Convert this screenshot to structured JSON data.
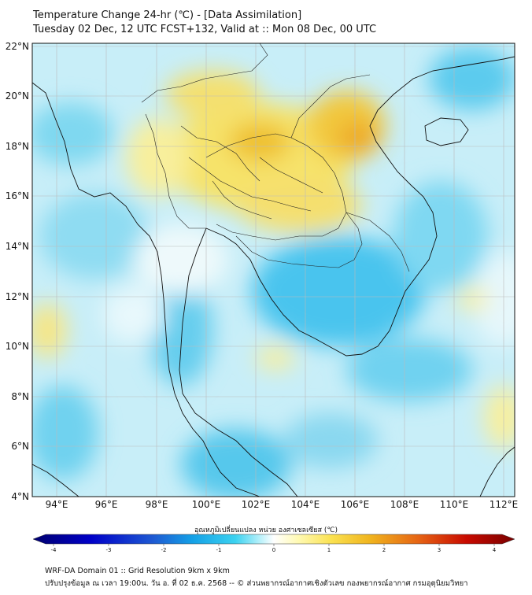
{
  "header": {
    "title": "Temperature Change 24-hr (℃) - [Data Assimilation]",
    "subtitle": "Tuesday 02 Dec, 12 UTC FCST+132, Valid at :: Mon 08 Dec, 00 UTC"
  },
  "map": {
    "lon_range": [
      93,
      112.5
    ],
    "lat_range": [
      4,
      22.2
    ],
    "lat_ticks": [
      "22°N",
      "20°N",
      "18°N",
      "16°N",
      "14°N",
      "12°N",
      "10°N",
      "8°N",
      "6°N",
      "4°N"
    ],
    "lon_ticks": [
      "94°E",
      "96°E",
      "98°E",
      "100°E",
      "102°E",
      "104°E",
      "106°E",
      "108°E",
      "110°E",
      "112°E"
    ],
    "grid": true
  },
  "colorbar": {
    "title": "อุณหภูมิเปลี่ยนแปลง หน่วย องศาเซลเซียส (℃)",
    "ticks": [
      "-4",
      "-3",
      "-2",
      "-1",
      "0",
      "1",
      "2",
      "3",
      "4"
    ],
    "colors": [
      "#00006e",
      "#0000c8",
      "#1e5ad2",
      "#14a0e6",
      "#3cd2f0",
      "#b4f0fa",
      "#ffffff",
      "#fffab4",
      "#fae150",
      "#f0b41e",
      "#e66414",
      "#c80a00",
      "#780000"
    ]
  },
  "footer": {
    "line1": "WRF-DA Domain 01 :: Grid Resolution 9km x 9km",
    "line2": "ปรับปรุงข้อมูล ณ เวลา 19:00น. วัน อ. ที่ 02 ธ.ค. 2568 -- © ส่วนพยากรณ์อากาศเชิงตัวเลข กองพยากรณ์อากาศ กรมอุตุนิยมวิทยา"
  }
}
